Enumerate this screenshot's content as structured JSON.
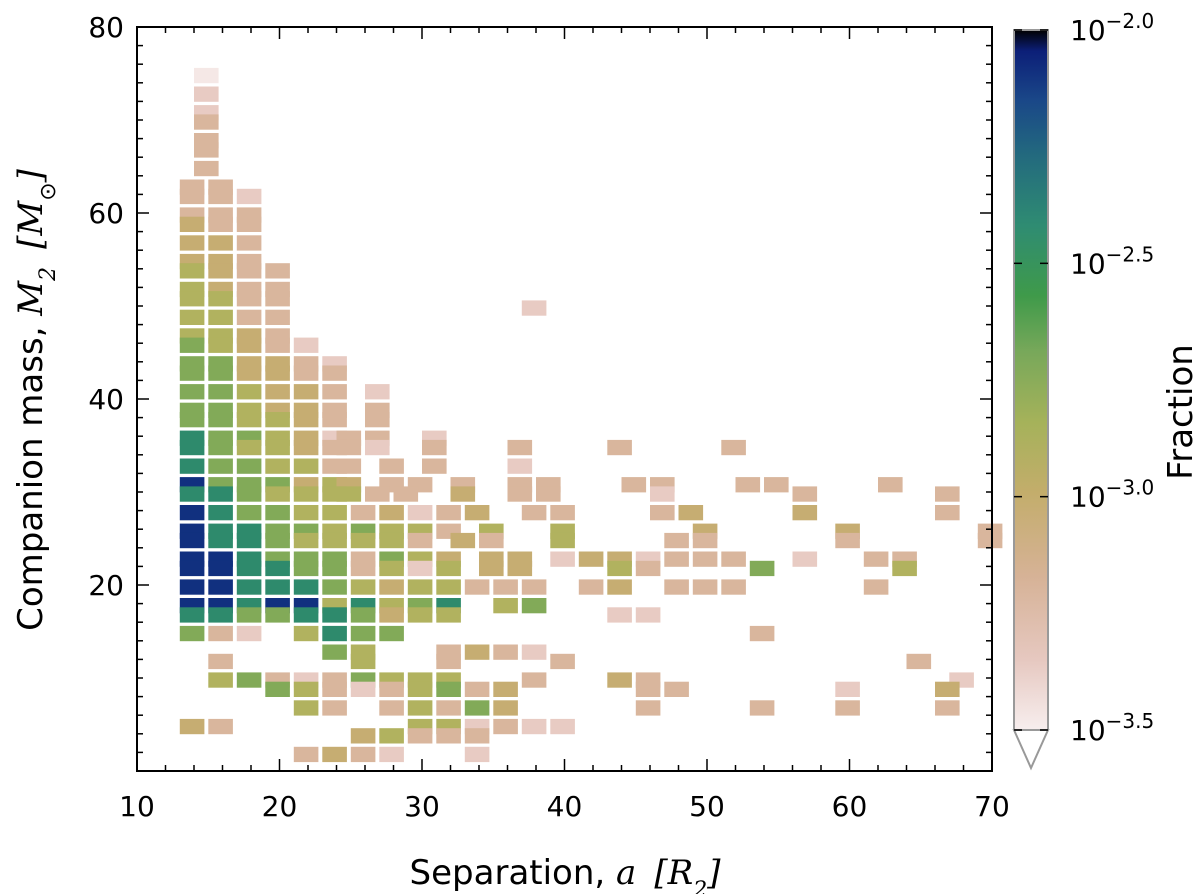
{
  "chart_data": {
    "type": "heatmap",
    "xlabel": "Separation, a  [R_2]",
    "ylabel": "Companion mass, M_2  [M_sun]",
    "xlim": [
      10,
      70
    ],
    "ylim": [
      0,
      80
    ],
    "x_ticks": [
      "10",
      "20",
      "30",
      "40",
      "50",
      "60",
      "70"
    ],
    "y_ticks": [
      "20",
      "40",
      "60",
      "80"
    ],
    "x_label_text": "Separation, ",
    "x_label_var": "a",
    "x_label_unit": "[R",
    "x_label_unit_sub": "2",
    "x_label_unit_close": "]",
    "y_label_text": "Companion mass, ",
    "y_label_var": "M",
    "y_label_var_sub": "2",
    "y_label_unit": "[M",
    "y_label_unit_close": "]",
    "colorbar": {
      "label": "Fraction",
      "scale": "log",
      "range_log10": [
        -3.5,
        -2.0
      ],
      "tick_values": [
        -3.5,
        -3.0,
        -2.5,
        -2.0
      ],
      "tick_base": "10",
      "tick_exponents": [
        "−3.5",
        "−3.0",
        "−2.5",
        "−2.0"
      ]
    },
    "bin_size": {
      "separation": 1.7,
      "mass": 1.6
    },
    "cells_level_0_to_7_log_scaled": [
      [
        14,
        74,
        0
      ],
      [
        14,
        72,
        1
      ],
      [
        14,
        70,
        1
      ],
      [
        14,
        69,
        2
      ],
      [
        14,
        67,
        2
      ],
      [
        14,
        66,
        2
      ],
      [
        14,
        64,
        2
      ],
      [
        13,
        62,
        2
      ],
      [
        15,
        62,
        2
      ],
      [
        13,
        61,
        2
      ],
      [
        15,
        61,
        2
      ],
      [
        17,
        61,
        1
      ],
      [
        13,
        59,
        2
      ],
      [
        15,
        59,
        2
      ],
      [
        17,
        59,
        2
      ],
      [
        13,
        58,
        3
      ],
      [
        15,
        58,
        2
      ],
      [
        17,
        58,
        2
      ],
      [
        13,
        56,
        3
      ],
      [
        15,
        56,
        3
      ],
      [
        17,
        56,
        2
      ],
      [
        13,
        54,
        3
      ],
      [
        15,
        54,
        3
      ],
      [
        17,
        54,
        2
      ],
      [
        13,
        53,
        4
      ],
      [
        15,
        53,
        3
      ],
      [
        17,
        53,
        2
      ],
      [
        19,
        53,
        2
      ],
      [
        13,
        51,
        4
      ],
      [
        15,
        51,
        3
      ],
      [
        17,
        51,
        2
      ],
      [
        19,
        51,
        2
      ],
      [
        13,
        50,
        4
      ],
      [
        15,
        50,
        4
      ],
      [
        17,
        50,
        2
      ],
      [
        19,
        50,
        2
      ],
      [
        13,
        48,
        4
      ],
      [
        15,
        48,
        4
      ],
      [
        17,
        48,
        2
      ],
      [
        19,
        48,
        2
      ],
      [
        37,
        49,
        1
      ],
      [
        13,
        46,
        4
      ],
      [
        15,
        46,
        4
      ],
      [
        17,
        46,
        3
      ],
      [
        19,
        46,
        2
      ],
      [
        13,
        45,
        5
      ],
      [
        15,
        45,
        4
      ],
      [
        17,
        45,
        3
      ],
      [
        19,
        45,
        2
      ],
      [
        21,
        45,
        1
      ],
      [
        13,
        43,
        5
      ],
      [
        15,
        43,
        5
      ],
      [
        17,
        43,
        3
      ],
      [
        19,
        43,
        3
      ],
      [
        21,
        43,
        2
      ],
      [
        23,
        43,
        1
      ],
      [
        13,
        42,
        5
      ],
      [
        15,
        42,
        5
      ],
      [
        17,
        42,
        3
      ],
      [
        19,
        42,
        3
      ],
      [
        21,
        42,
        2
      ],
      [
        23,
        42,
        2
      ],
      [
        13,
        40,
        5
      ],
      [
        15,
        40,
        5
      ],
      [
        17,
        40,
        4
      ],
      [
        19,
        40,
        3
      ],
      [
        21,
        40,
        3
      ],
      [
        23,
        40,
        2
      ],
      [
        26,
        40,
        1
      ],
      [
        13,
        38,
        5
      ],
      [
        15,
        38,
        5
      ],
      [
        17,
        38,
        4
      ],
      [
        19,
        38,
        3
      ],
      [
        21,
        38,
        3
      ],
      [
        23,
        38,
        2
      ],
      [
        26,
        38,
        2
      ],
      [
        13,
        37,
        5
      ],
      [
        15,
        37,
        5
      ],
      [
        17,
        37,
        4
      ],
      [
        19,
        37,
        4
      ],
      [
        21,
        37,
        3
      ],
      [
        23,
        37,
        2
      ],
      [
        26,
        37,
        2
      ],
      [
        13,
        35,
        6
      ],
      [
        15,
        35,
        5
      ],
      [
        17,
        35,
        5
      ],
      [
        19,
        35,
        4
      ],
      [
        21,
        35,
        3
      ],
      [
        23,
        35,
        1
      ],
      [
        24,
        35,
        2
      ],
      [
        26,
        35,
        2
      ],
      [
        30,
        35,
        1
      ],
      [
        13,
        34,
        6
      ],
      [
        15,
        34,
        5
      ],
      [
        17,
        34,
        4
      ],
      [
        19,
        34,
        4
      ],
      [
        21,
        34,
        3
      ],
      [
        23,
        34,
        2
      ],
      [
        24,
        34,
        2
      ],
      [
        26,
        34,
        1
      ],
      [
        30,
        34,
        2
      ],
      [
        36,
        34,
        2
      ],
      [
        43,
        34,
        2
      ],
      [
        51,
        34,
        2
      ],
      [
        13,
        32,
        6
      ],
      [
        15,
        32,
        5
      ],
      [
        17,
        32,
        5
      ],
      [
        19,
        32,
        4
      ],
      [
        21,
        32,
        4
      ],
      [
        23,
        32,
        2
      ],
      [
        24,
        32,
        2
      ],
      [
        27,
        32,
        2
      ],
      [
        30,
        32,
        2
      ],
      [
        36,
        32,
        1
      ],
      [
        13,
        30,
        7
      ],
      [
        15,
        30,
        5
      ],
      [
        17,
        30,
        5
      ],
      [
        19,
        30,
        5
      ],
      [
        21,
        30,
        3
      ],
      [
        23,
        30,
        4
      ],
      [
        24,
        30,
        3
      ],
      [
        27,
        30,
        2
      ],
      [
        29,
        30,
        2
      ],
      [
        32,
        30,
        2
      ],
      [
        36,
        30,
        2
      ],
      [
        38,
        30,
        2
      ],
      [
        44,
        30,
        2
      ],
      [
        46,
        30,
        2
      ],
      [
        52,
        30,
        2
      ],
      [
        54,
        30,
        2
      ],
      [
        62,
        30,
        2
      ],
      [
        13,
        29,
        6
      ],
      [
        15,
        29,
        6
      ],
      [
        17,
        29,
        5
      ],
      [
        19,
        29,
        4
      ],
      [
        21,
        29,
        4
      ],
      [
        23,
        29,
        4
      ],
      [
        24,
        29,
        4
      ],
      [
        26,
        29,
        2
      ],
      [
        28,
        29,
        2
      ],
      [
        32,
        29,
        3
      ],
      [
        36,
        29,
        2
      ],
      [
        38,
        29,
        2
      ],
      [
        46,
        29,
        1
      ],
      [
        56,
        29,
        2
      ],
      [
        66,
        29,
        2
      ],
      [
        13,
        27,
        7
      ],
      [
        15,
        27,
        6
      ],
      [
        17,
        27,
        5
      ],
      [
        19,
        27,
        5
      ],
      [
        21,
        27,
        4
      ],
      [
        23,
        27,
        4
      ],
      [
        25,
        27,
        2
      ],
      [
        27,
        27,
        3
      ],
      [
        29,
        27,
        1
      ],
      [
        31,
        27,
        2
      ],
      [
        33,
        27,
        3
      ],
      [
        37,
        27,
        2
      ],
      [
        39,
        27,
        2
      ],
      [
        46,
        27,
        2
      ],
      [
        48,
        27,
        3
      ],
      [
        56,
        27,
        3
      ],
      [
        66,
        27,
        2
      ],
      [
        13,
        25,
        7
      ],
      [
        15,
        25,
        6
      ],
      [
        17,
        25,
        6
      ],
      [
        19,
        25,
        5
      ],
      [
        21,
        25,
        5
      ],
      [
        23,
        25,
        4
      ],
      [
        25,
        25,
        5
      ],
      [
        27,
        25,
        4
      ],
      [
        29,
        25,
        4
      ],
      [
        31,
        25,
        2
      ],
      [
        34,
        25,
        4
      ],
      [
        39,
        25,
        4
      ],
      [
        49,
        25,
        3
      ],
      [
        59,
        25,
        3
      ],
      [
        69,
        25,
        2
      ],
      [
        13,
        24,
        7
      ],
      [
        15,
        24,
        6
      ],
      [
        17,
        24,
        6
      ],
      [
        19,
        24,
        5
      ],
      [
        21,
        24,
        4
      ],
      [
        23,
        24,
        4
      ],
      [
        25,
        24,
        4
      ],
      [
        27,
        24,
        4
      ],
      [
        29,
        24,
        2
      ],
      [
        32,
        24,
        3
      ],
      [
        34,
        24,
        2
      ],
      [
        39,
        24,
        4
      ],
      [
        47,
        24,
        2
      ],
      [
        49,
        24,
        2
      ],
      [
        59,
        24,
        2
      ],
      [
        69,
        24,
        2
      ],
      [
        13,
        22,
        7
      ],
      [
        15,
        22,
        7
      ],
      [
        17,
        22,
        6
      ],
      [
        19,
        22,
        5
      ],
      [
        21,
        22,
        5
      ],
      [
        23,
        22,
        5
      ],
      [
        25,
        22,
        2
      ],
      [
        27,
        22,
        5
      ],
      [
        29,
        22,
        4
      ],
      [
        31,
        22,
        3
      ],
      [
        34,
        22,
        3
      ],
      [
        36,
        22,
        3
      ],
      [
        39,
        22,
        1
      ],
      [
        41,
        22,
        3
      ],
      [
        43,
        22,
        3
      ],
      [
        45,
        22,
        1
      ],
      [
        47,
        22,
        2
      ],
      [
        49,
        22,
        2
      ],
      [
        51,
        22,
        2
      ],
      [
        56,
        22,
        1
      ],
      [
        61,
        22,
        2
      ],
      [
        63,
        22,
        2
      ],
      [
        13,
        21,
        7
      ],
      [
        15,
        21,
        7
      ],
      [
        17,
        21,
        6
      ],
      [
        19,
        21,
        6
      ],
      [
        21,
        21,
        5
      ],
      [
        23,
        21,
        5
      ],
      [
        25,
        21,
        2
      ],
      [
        27,
        21,
        4
      ],
      [
        29,
        21,
        1
      ],
      [
        31,
        21,
        4
      ],
      [
        34,
        21,
        3
      ],
      [
        36,
        21,
        3
      ],
      [
        43,
        21,
        4
      ],
      [
        45,
        21,
        2
      ],
      [
        53,
        21,
        5
      ],
      [
        63,
        21,
        4
      ],
      [
        13,
        19,
        7
      ],
      [
        15,
        19,
        7
      ],
      [
        17,
        19,
        6
      ],
      [
        19,
        19,
        6
      ],
      [
        21,
        19,
        6
      ],
      [
        23,
        19,
        5
      ],
      [
        25,
        19,
        4
      ],
      [
        27,
        19,
        3
      ],
      [
        29,
        19,
        4
      ],
      [
        31,
        19,
        4
      ],
      [
        33,
        19,
        2
      ],
      [
        35,
        19,
        2
      ],
      [
        37,
        19,
        2
      ],
      [
        41,
        19,
        2
      ],
      [
        43,
        19,
        3
      ],
      [
        47,
        19,
        2
      ],
      [
        49,
        19,
        2
      ],
      [
        51,
        19,
        2
      ],
      [
        61,
        19,
        2
      ],
      [
        13,
        17,
        7
      ],
      [
        15,
        17,
        7
      ],
      [
        17,
        17,
        6
      ],
      [
        19,
        17,
        7
      ],
      [
        21,
        17,
        7
      ],
      [
        23,
        17,
        4
      ],
      [
        25,
        17,
        6
      ],
      [
        27,
        17,
        4
      ],
      [
        29,
        17,
        5
      ],
      [
        31,
        17,
        6
      ],
      [
        35,
        17,
        4
      ],
      [
        37,
        17,
        5
      ],
      [
        13,
        16,
        6
      ],
      [
        15,
        16,
        6
      ],
      [
        17,
        16,
        5
      ],
      [
        19,
        16,
        5
      ],
      [
        21,
        16,
        6
      ],
      [
        23,
        16,
        6
      ],
      [
        25,
        16,
        5
      ],
      [
        27,
        16,
        3
      ],
      [
        29,
        16,
        4
      ],
      [
        31,
        16,
        4
      ],
      [
        43,
        16,
        1
      ],
      [
        45,
        16,
        1
      ],
      [
        13,
        14,
        5
      ],
      [
        15,
        14,
        2
      ],
      [
        17,
        14,
        1
      ],
      [
        21,
        14,
        4
      ],
      [
        23,
        14,
        6
      ],
      [
        25,
        14,
        5
      ],
      [
        27,
        14,
        5
      ],
      [
        53,
        14,
        2
      ],
      [
        23,
        12,
        5
      ],
      [
        25,
        12,
        4
      ],
      [
        31,
        12,
        2
      ],
      [
        33,
        12,
        3
      ],
      [
        35,
        12,
        2
      ],
      [
        37,
        12,
        1
      ],
      [
        15,
        11,
        2
      ],
      [
        25,
        11,
        4
      ],
      [
        31,
        11,
        2
      ],
      [
        39,
        11,
        2
      ],
      [
        64,
        11,
        2
      ],
      [
        15,
        9,
        4
      ],
      [
        17,
        9,
        5
      ],
      [
        19,
        9,
        2
      ],
      [
        21,
        9,
        1
      ],
      [
        23,
        9,
        2
      ],
      [
        25,
        9,
        5
      ],
      [
        27,
        9,
        4
      ],
      [
        29,
        9,
        4
      ],
      [
        31,
        9,
        4
      ],
      [
        37,
        9,
        2
      ],
      [
        43,
        9,
        3
      ],
      [
        45,
        9,
        2
      ],
      [
        67,
        9,
        1
      ],
      [
        19,
        8,
        5
      ],
      [
        21,
        8,
        4
      ],
      [
        23,
        8,
        2
      ],
      [
        25,
        8,
        1
      ],
      [
        27,
        8,
        2
      ],
      [
        29,
        8,
        4
      ],
      [
        31,
        8,
        5
      ],
      [
        33,
        8,
        2
      ],
      [
        35,
        8,
        3
      ],
      [
        45,
        8,
        2
      ],
      [
        47,
        8,
        2
      ],
      [
        59,
        8,
        1
      ],
      [
        66,
        8,
        3
      ],
      [
        21,
        6,
        4
      ],
      [
        23,
        6,
        2
      ],
      [
        27,
        6,
        2
      ],
      [
        29,
        6,
        4
      ],
      [
        31,
        6,
        2
      ],
      [
        33,
        6,
        5
      ],
      [
        35,
        6,
        3
      ],
      [
        45,
        6,
        2
      ],
      [
        53,
        6,
        2
      ],
      [
        59,
        6,
        2
      ],
      [
        66,
        6,
        2
      ],
      [
        13,
        4,
        3
      ],
      [
        15,
        4,
        2
      ],
      [
        29,
        4,
        4
      ],
      [
        31,
        4,
        4
      ],
      [
        33,
        4,
        1
      ],
      [
        35,
        4,
        2
      ],
      [
        37,
        4,
        1
      ],
      [
        39,
        4,
        1
      ],
      [
        25,
        3,
        3
      ],
      [
        27,
        3,
        4
      ],
      [
        29,
        3,
        2
      ],
      [
        31,
        3,
        2
      ],
      [
        33,
        3,
        2
      ],
      [
        21,
        1,
        2
      ],
      [
        23,
        1,
        3
      ],
      [
        25,
        1,
        2
      ],
      [
        27,
        1,
        1
      ],
      [
        33,
        1,
        1
      ]
    ]
  }
}
